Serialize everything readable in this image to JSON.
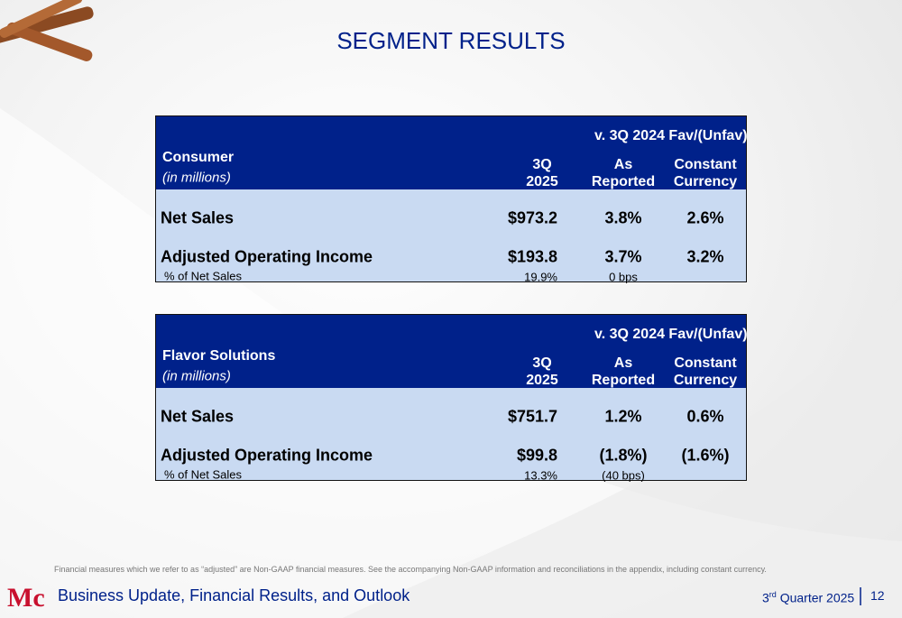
{
  "title": "SEGMENT RESULTS",
  "tables": [
    {
      "segment": "Consumer",
      "unit": "(in millions)",
      "comparison_header": "v. 3Q 2024 Fav/(Unfav)",
      "columns": [
        [
          "3Q",
          "2025"
        ],
        [
          "As",
          "Reported"
        ],
        [
          "Constant",
          "Currency"
        ]
      ],
      "rows": [
        {
          "label": "Net Sales",
          "cells": [
            "$973.2",
            "3.8%",
            "2.6%"
          ]
        },
        {
          "label": "Adjusted Operating Income",
          "cells": [
            "$193.8",
            "3.7%",
            "3.2%"
          ],
          "sub": {
            "label": "% of Net Sales",
            "cells": [
              "19.9%",
              "0 bps"
            ]
          }
        }
      ]
    },
    {
      "segment": "Flavor Solutions",
      "unit": "(in millions)",
      "comparison_header": "v. 3Q 2024 Fav/(Unfav)",
      "columns": [
        [
          "3Q",
          "2025"
        ],
        [
          "As",
          "Reported"
        ],
        [
          "Constant",
          "Currency"
        ]
      ],
      "rows": [
        {
          "label": "Net Sales",
          "cells": [
            "$751.7",
            "1.2%",
            "0.6%"
          ]
        },
        {
          "label": "Adjusted Operating Income",
          "cells": [
            "$99.8",
            "(1.8%)",
            "(1.6%)"
          ],
          "sub": {
            "label": "% of Net Sales",
            "cells": [
              "13.3%",
              "(40 bps)"
            ]
          }
        }
      ]
    }
  ],
  "footer": {
    "note": "Financial measures which we refer to as “adjusted” are Non-GAAP financial measures. See the accompanying Non-GAAP information and reconciliations in the appendix, including constant currency.",
    "subtitle": "Business Update, Financial Results, and Outlook",
    "quarter": {
      "number": "3",
      "suffix": "rd",
      "text": "Quarter 2025"
    },
    "page": "12"
  }
}
